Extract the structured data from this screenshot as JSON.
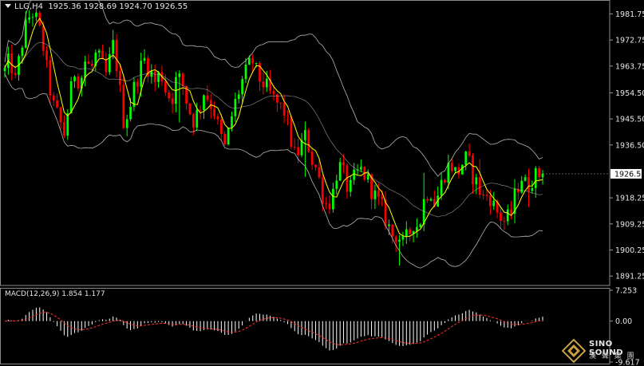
{
  "header": {
    "symbol": "LLG,H4",
    "ohlc": "1925.36 1928.69 1924.70 1926.55"
  },
  "macd": {
    "label": "MACD(12,26,9)",
    "values": "1.854 1.177"
  },
  "logo": {
    "brand": "SINO SOUND",
    "tagline": "漢 聲 集 團"
  },
  "colors": {
    "background": "#000000",
    "bull": "#00ff00",
    "bear": "#ff0000",
    "ma": "#ffff00",
    "bands": "#b4b4b4",
    "macd_hist": "#ffffff",
    "macd_signal": "#ff3333",
    "current_price_box": "#ffffff"
  },
  "chart_data": [
    {
      "type": "candlestick",
      "timeframe": "H4",
      "symbol": "LLG",
      "current_price": 1926.55,
      "current_price_label": "1926.55",
      "ylim": [
        1888.0,
        1986.0
      ],
      "y_ticks": [
        1981.75,
        1972.75,
        1963.75,
        1954.5,
        1945.5,
        1936.5,
        1918.25,
        1909.25,
        1900.25,
        1891.25
      ],
      "y_tick_labels": [
        "1981.75",
        "1972.75",
        "1963.75",
        "1954.50",
        "1945.50",
        "1936.50",
        "1918.25",
        "1909.25",
        "1900.25",
        "1891.25"
      ],
      "indicators": [
        "moving-average",
        "bollinger-bands"
      ],
      "closes": [
        1962,
        1966,
        1958,
        1970,
        1978,
        1983,
        1979,
        1972,
        1960,
        1950,
        1946,
        1940,
        1952,
        1962,
        1958,
        1966,
        1962,
        1968,
        1964,
        1960,
        1972,
        1962,
        1945,
        1948,
        1956,
        1962,
        1966,
        1962,
        1958,
        1962,
        1955,
        1952,
        1960,
        1958,
        1950,
        1945,
        1948,
        1955,
        1952,
        1948,
        1940,
        1935,
        1945,
        1952,
        1958,
        1962,
        1966,
        1960,
        1958,
        1955,
        1952,
        1950,
        1948,
        1940,
        1932,
        1936,
        1940,
        1932,
        1928,
        1920,
        1915,
        1920,
        1930,
        1926,
        1920,
        1925,
        1928,
        1926,
        1922,
        1918,
        1915,
        1910,
        1905,
        1906,
        1902,
        1905,
        1910,
        1908,
        1918,
        1922,
        1916,
        1922,
        1928,
        1930,
        1926,
        1930,
        1932,
        1926,
        1922,
        1918,
        1920,
        1915,
        1912,
        1910,
        1912,
        1920,
        1926,
        1922,
        1925,
        1926,
        1926.55
      ]
    },
    {
      "type": "macd",
      "params": "12,26,9",
      "ylim": [
        -9.617,
        7.253
      ],
      "y_tick_labels": [
        "7.253",
        "0.00",
        "-9.617"
      ],
      "main_value": 1.854,
      "signal_value": 1.177
    }
  ]
}
